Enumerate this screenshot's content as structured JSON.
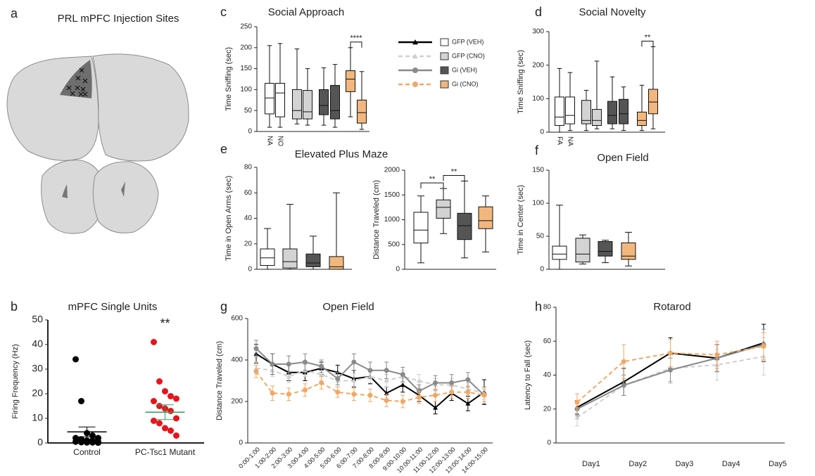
{
  "diagram": {
    "letter": "a",
    "title": "PRL mPFC Injection Sites"
  },
  "legend": {
    "entries": [
      {
        "name": "GFP (VEH)",
        "color": "#000000",
        "box_color": "#ffffff",
        "dashed": false,
        "marker": "triangle"
      },
      {
        "name": "GFP (CNO)",
        "color": "#cfcfcf",
        "box_color": "#d3d3d3",
        "dashed": true,
        "marker": "triangle"
      },
      {
        "name": "Gi (VEH)",
        "color": "#8a8a8a",
        "box_color": "#555555",
        "dashed": false,
        "marker": "circle"
      },
      {
        "name": "Gi (CNO)",
        "color": "#f0a866",
        "box_color": "#f2b77e",
        "dashed": true,
        "marker": "circle"
      }
    ]
  },
  "chart_data": [
    {
      "type": "strip",
      "letter": "b",
      "title": "mPFC Single Units",
      "ylabel": "Firing Frequency (Hz)",
      "categories": [
        "Control",
        "PC-Tsc1 Mutant"
      ],
      "points": [
        [
          34,
          17,
          4,
          3,
          2,
          2,
          1.5,
          1,
          1,
          0.5,
          0.5,
          0.3,
          0.2,
          0.2,
          0.1
        ],
        [
          41,
          25,
          21,
          19,
          18,
          17,
          15,
          14,
          13,
          10,
          9,
          8,
          6,
          5,
          3
        ]
      ],
      "means": [
        4.5,
        12.5
      ],
      "errors": [
        2,
        3
      ],
      "colors": [
        "#000000",
        "#e8141b"
      ],
      "mean_colors": [
        "#000000",
        "#2e9e5a"
      ],
      "annotation": {
        "text": "**",
        "group": 1
      },
      "ylim": [
        0,
        50
      ],
      "yticks": [
        0,
        10,
        20,
        30,
        40,
        50
      ]
    },
    {
      "type": "box",
      "letter": "c",
      "title": "Social Approach",
      "ylabel": "Time Sniffing (sec)",
      "categories": [
        "NA",
        "NO",
        null,
        null,
        null,
        null,
        null,
        null
      ],
      "boxes": [
        {
          "min": 10,
          "q1": 42,
          "median": 80,
          "q3": 115,
          "max": 205
        },
        {
          "min": 10,
          "q1": 35,
          "median": 92,
          "q3": 115,
          "max": 210
        },
        {
          "min": 18,
          "q1": 30,
          "median": 50,
          "q3": 100,
          "max": 197
        },
        {
          "min": 15,
          "q1": 30,
          "median": 47,
          "q3": 98,
          "max": 150
        },
        {
          "min": 15,
          "q1": 40,
          "median": 62,
          "q3": 100,
          "max": 152
        },
        {
          "min": 10,
          "q1": 30,
          "median": 50,
          "q3": 110,
          "max": 160
        },
        {
          "min": 35,
          "q1": 95,
          "median": 125,
          "q3": 145,
          "max": 200
        },
        {
          "min": 5,
          "q1": 20,
          "median": 45,
          "q3": 75,
          "max": 143
        }
      ],
      "colors": [
        "#ffffff",
        "#ffffff",
        "#d3d3d3",
        "#d3d3d3",
        "#555555",
        "#555555",
        "#f2b77e",
        "#f2b77e"
      ],
      "annotations": [
        {
          "text": "****",
          "boxes": [
            6,
            7
          ]
        }
      ],
      "ylim": [
        0,
        250
      ],
      "yticks": [
        0,
        50,
        100,
        150,
        200,
        250
      ]
    },
    {
      "type": "box",
      "letter": "d",
      "title": "Social Novelty",
      "ylabel": "Time Sniffing (sec)",
      "categories": [
        "FA",
        "NA",
        null,
        null,
        null,
        null,
        null,
        null
      ],
      "boxes": [
        {
          "min": 0,
          "q1": 20,
          "median": 45,
          "q3": 105,
          "max": 190
        },
        {
          "min": 5,
          "q1": 25,
          "median": 50,
          "q3": 105,
          "max": 178
        },
        {
          "min": 5,
          "q1": 25,
          "median": 35,
          "q3": 95,
          "max": 125
        },
        {
          "min": 10,
          "q1": 20,
          "median": 35,
          "q3": 68,
          "max": 212
        },
        {
          "min": 10,
          "q1": 25,
          "median": 50,
          "q3": 92,
          "max": 165
        },
        {
          "min": 5,
          "q1": 25,
          "median": 55,
          "q3": 98,
          "max": 135
        },
        {
          "min": 5,
          "q1": 20,
          "median": 35,
          "q3": 60,
          "max": 140
        },
        {
          "min": 10,
          "q1": 55,
          "median": 90,
          "q3": 128,
          "max": 255
        }
      ],
      "colors": [
        "#ffffff",
        "#ffffff",
        "#d3d3d3",
        "#d3d3d3",
        "#555555",
        "#555555",
        "#f2b77e",
        "#f2b77e"
      ],
      "annotations": [
        {
          "text": "**",
          "boxes": [
            6,
            7
          ]
        }
      ],
      "ylim": [
        0,
        300
      ],
      "yticks": [
        0,
        100,
        200,
        300
      ]
    },
    {
      "type": "box",
      "letter": "e",
      "title": "Elevated Plus Maze",
      "ylabel": "Time in Open Arms (sec)",
      "boxes": [
        {
          "min": 0,
          "q1": 3,
          "median": 9,
          "q3": 16,
          "max": 32
        },
        {
          "min": 0,
          "q1": 1,
          "median": 6,
          "q3": 16,
          "max": 51
        },
        {
          "min": 0,
          "q1": 2,
          "median": 5,
          "q3": 12,
          "max": 26
        },
        {
          "min": 0,
          "q1": 0,
          "median": 2,
          "q3": 10,
          "max": 60
        }
      ],
      "colors": [
        "#ffffff",
        "#d3d3d3",
        "#555555",
        "#f2b77e"
      ],
      "ylim": [
        0,
        80
      ],
      "yticks": [
        0,
        20,
        40,
        60,
        80
      ]
    },
    {
      "type": "box",
      "ylabel": "Distance Traveled  (cm)",
      "boxes": [
        {
          "min": 130,
          "q1": 530,
          "median": 790,
          "q3": 1150,
          "max": 1480
        },
        {
          "min": 720,
          "q1": 1030,
          "median": 1250,
          "q3": 1400,
          "max": 1630
        },
        {
          "min": 230,
          "q1": 600,
          "median": 880,
          "q3": 1130,
          "max": 1780
        },
        {
          "min": 350,
          "q1": 820,
          "median": 980,
          "q3": 1260,
          "max": 1480
        }
      ],
      "colors": [
        "#ffffff",
        "#d3d3d3",
        "#555555",
        "#f2b77e"
      ],
      "annotations": [
        {
          "text": "**",
          "boxes": [
            0,
            1
          ]
        },
        {
          "text": "**",
          "boxes": [
            1,
            2
          ]
        }
      ],
      "ylim": [
        0,
        2000
      ],
      "yticks": [
        0,
        500,
        1000,
        1500,
        2000
      ]
    },
    {
      "type": "box",
      "letter": "f",
      "title": "Open Field",
      "ylabel": "Time in Center (sec)",
      "boxes": [
        {
          "min": 0,
          "q1": 15,
          "median": 23,
          "q3": 35,
          "max": 97
        },
        {
          "min": 8,
          "q1": 11,
          "median": 23,
          "q3": 47,
          "max": 52
        },
        {
          "min": 10,
          "q1": 20,
          "median": 27,
          "q3": 42,
          "max": 44
        },
        {
          "min": 5,
          "q1": 15,
          "median": 20,
          "q3": 40,
          "max": 56
        }
      ],
      "colors": [
        "#ffffff",
        "#d3d3d3",
        "#555555",
        "#f2b77e"
      ],
      "ylim": [
        0,
        150
      ],
      "yticks": [
        0,
        50,
        100,
        150
      ]
    },
    {
      "type": "line",
      "letter": "g",
      "title": "Open Field",
      "ylabel": "Distance Traveled  (cm)",
      "categories": [
        "0:00-1:00",
        "1:00-2:00",
        "2:00-3:00",
        "3:00-4:00",
        "4:00-5:00",
        "5:00-6:00",
        "6:00-7:00",
        "7:00-8:00",
        "8:00-9:00",
        "9:00-10:00",
        "10:00-11:00",
        "11:00-12:00",
        "12:00-13:00",
        "13:00-14:00",
        "14:00-15:00"
      ],
      "series": [
        {
          "color": "#000000",
          "dashed": false,
          "marker": "triangle",
          "values": [
            430,
            380,
            340,
            340,
            360,
            340,
            310,
            320,
            240,
            280,
            230,
            170,
            240,
            190,
            245
          ],
          "errors": [
            45,
            50,
            40,
            40,
            30,
            35,
            40,
            35,
            30,
            35,
            30,
            30,
            35,
            35,
            60
          ]
        },
        {
          "color": "#cfcfcf",
          "dashed": true,
          "marker": "triangle",
          "values": [
            360,
            350,
            320,
            350,
            330,
            300,
            300,
            320,
            300,
            320,
            300,
            280,
            280,
            260,
            240
          ],
          "errors": [
            30,
            30,
            30,
            30,
            30,
            30,
            35,
            30,
            30,
            30,
            30,
            30,
            30,
            30,
            30
          ]
        },
        {
          "color": "#8a8a8a",
          "dashed": false,
          "marker": "circle",
          "values": [
            455,
            380,
            380,
            390,
            370,
            310,
            390,
            350,
            350,
            330,
            250,
            290,
            290,
            305,
            230
          ],
          "errors": [
            40,
            50,
            40,
            40,
            30,
            30,
            40,
            40,
            40,
            35,
            30,
            35,
            40,
            35,
            40
          ]
        },
        {
          "color": "#f0a866",
          "dashed": true,
          "marker": "circle",
          "values": [
            345,
            240,
            235,
            255,
            290,
            245,
            235,
            230,
            205,
            200,
            220,
            230,
            245,
            245,
            230
          ],
          "errors": [
            30,
            35,
            30,
            30,
            30,
            25,
            30,
            30,
            30,
            30,
            30,
            30,
            30,
            30,
            30
          ]
        }
      ],
      "ylim": [
        0,
        600
      ],
      "yticks": [
        0,
        200,
        400,
        600
      ]
    },
    {
      "type": "line",
      "letter": "h",
      "title": "Rotarod",
      "ylabel": "Latency to Fall (sec)",
      "categories": [
        "Day1",
        "Day2",
        "Day3",
        "Day4",
        "Day5"
      ],
      "series": [
        {
          "color": "#000000",
          "dashed": false,
          "marker": "triangle",
          "values": [
            21,
            36,
            53,
            50,
            59
          ],
          "errors": [
            4,
            8,
            9,
            8,
            11
          ]
        },
        {
          "color": "#cfcfcf",
          "dashed": true,
          "marker": "triangle",
          "values": [
            15,
            34,
            44,
            46,
            51
          ],
          "errors": [
            5,
            6,
            9,
            9,
            11
          ]
        },
        {
          "color": "#8a8a8a",
          "dashed": false,
          "marker": "circle",
          "values": [
            20,
            34,
            43,
            50,
            58
          ],
          "errors": [
            4,
            6,
            7,
            8,
            9
          ]
        },
        {
          "color": "#f0a866",
          "dashed": true,
          "marker": "circle",
          "values": [
            24,
            48,
            53,
            52,
            57
          ],
          "errors": [
            5,
            10,
            8,
            8,
            8
          ]
        }
      ],
      "ylim": [
        0,
        80
      ],
      "yticks": [
        0,
        20,
        40,
        60,
        80
      ]
    }
  ]
}
